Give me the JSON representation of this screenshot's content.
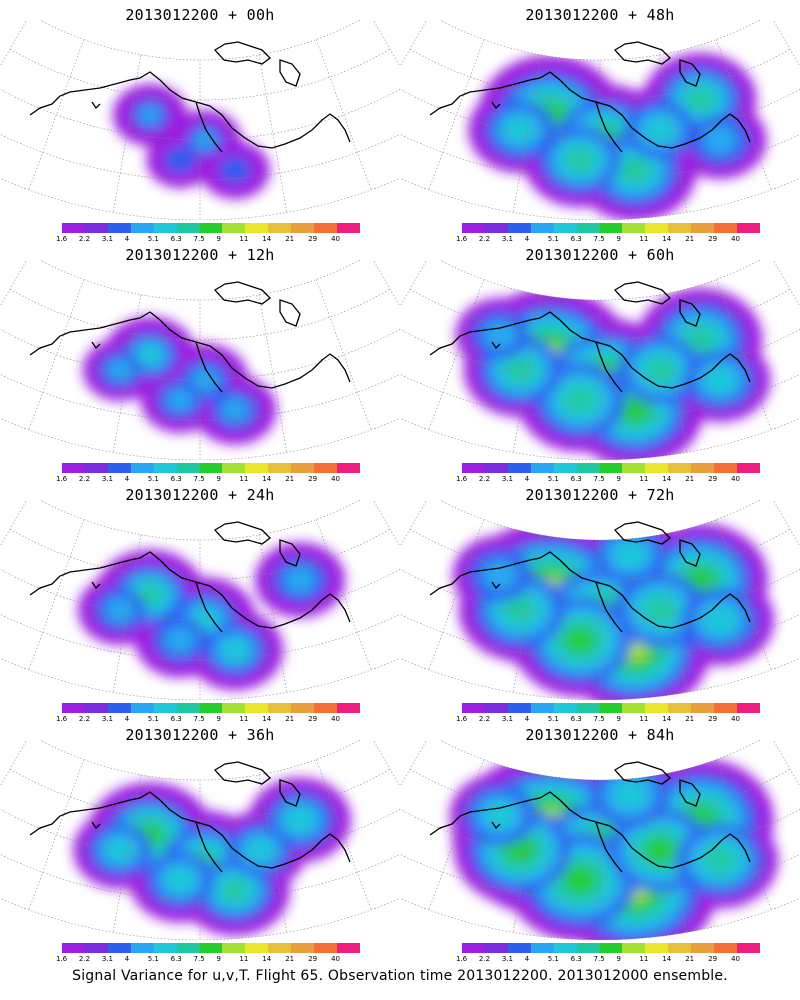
{
  "panels": [
    {
      "title": "2013012200 + 00h",
      "level": 0
    },
    {
      "title": "2013012200 + 48h",
      "level": 4
    },
    {
      "title": "2013012200 + 12h",
      "level": 1
    },
    {
      "title": "2013012200 + 60h",
      "level": 5
    },
    {
      "title": "2013012200 + 24h",
      "level": 2
    },
    {
      "title": "2013012200 + 72h",
      "level": 6
    },
    {
      "title": "2013012200 + 36h",
      "level": 3
    },
    {
      "title": "2013012200 + 84h",
      "level": 7
    }
  ],
  "colorbar": {
    "labels": [
      "1.6",
      "2.2",
      "3.1",
      "4",
      "5.1",
      "6.3",
      "7.5",
      "9",
      "11",
      "14",
      "21",
      "29",
      "40"
    ],
    "colors": [
      "#9b1fe0",
      "#7a2ce0",
      "#2f5bf0",
      "#2aa7f0",
      "#1ec8d8",
      "#20c8a0",
      "#25cc30",
      "#a6e030",
      "#e8e82a",
      "#e6c238",
      "#e8a03c",
      "#f07038",
      "#f01c82"
    ]
  },
  "caption": "Signal Variance for u,v,T. Flight 65. Observation time 2013012200. 2013012000 ensemble."
}
